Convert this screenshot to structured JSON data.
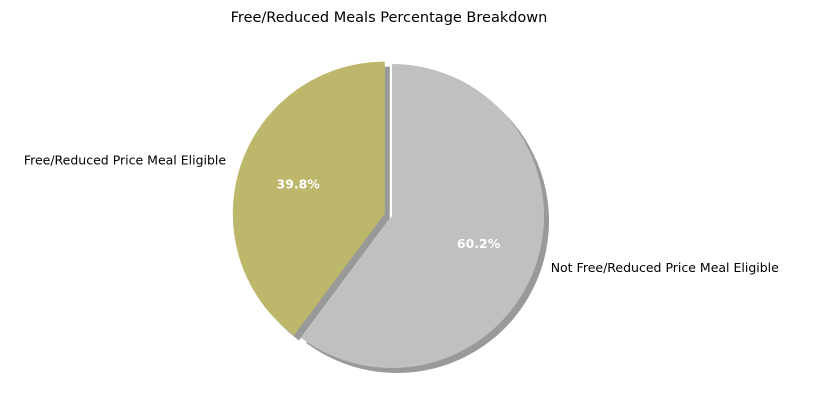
{
  "chart_data": {
    "type": "pie",
    "title": "Free/Reduced Meals Percentage Breakdown",
    "labels": [
      "Free/Reduced Price Meal Eligible",
      "Not Free/Reduced Price Meal Eligible"
    ],
    "values": [
      39.8,
      60.2
    ],
    "value_labels": [
      "39.8%",
      "60.2%"
    ],
    "colors": [
      "#bdb76b",
      "#c0c0c0"
    ],
    "explode": [
      0.05,
      0
    ],
    "start_angle_deg": 90,
    "shadow": true
  }
}
